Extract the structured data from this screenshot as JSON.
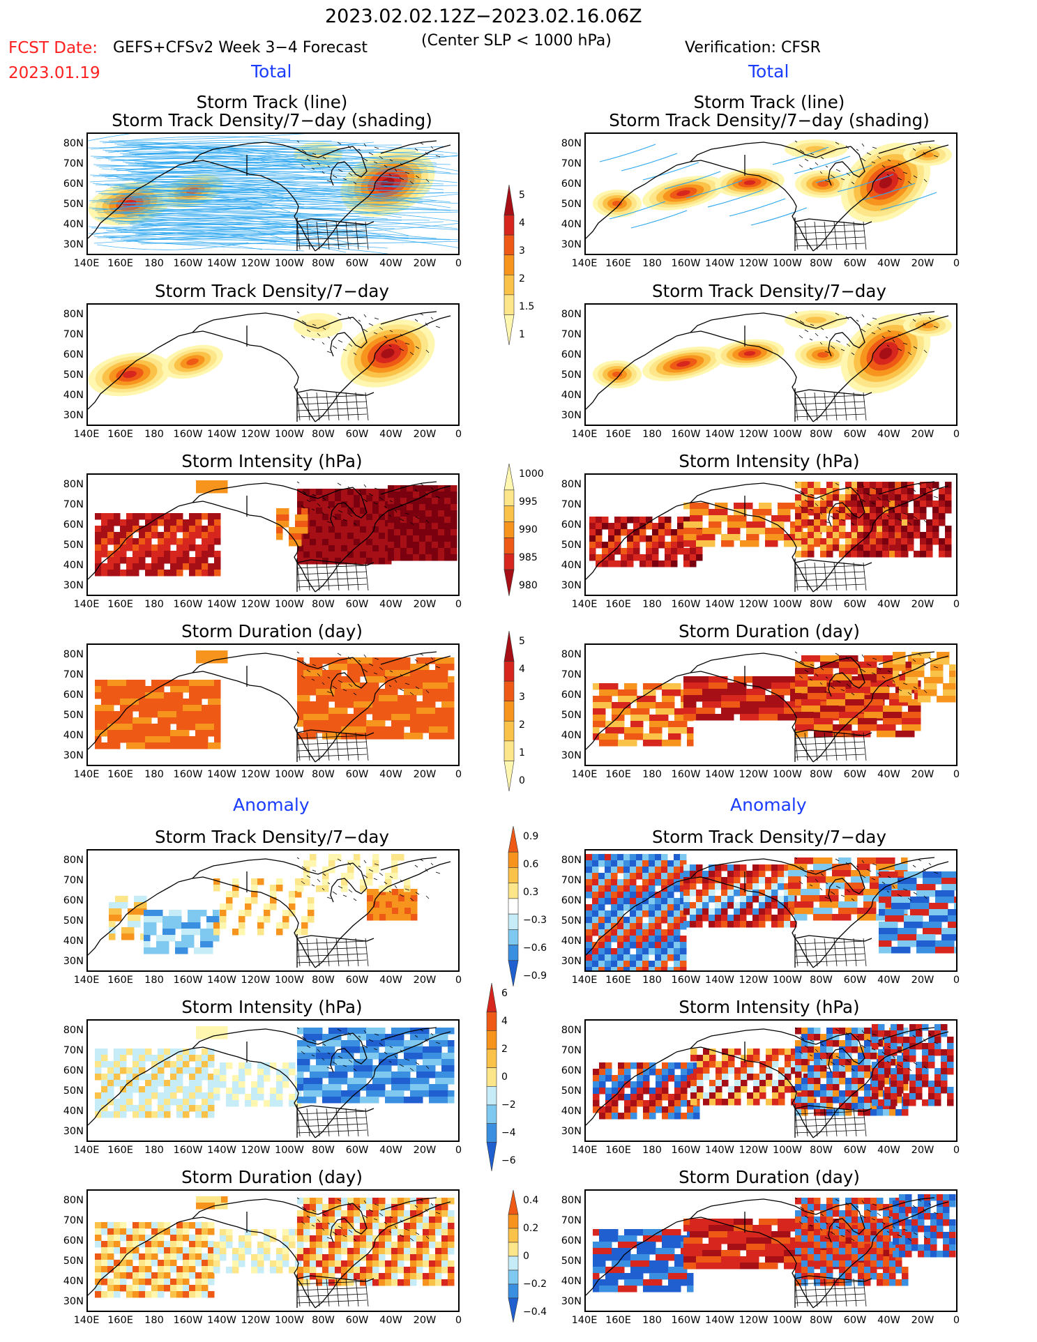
{
  "header": {
    "date_range": "2023.02.02.12Z−2023.02.16.06Z",
    "criterion": "(Center SLP < 1000 hPa)",
    "fcst_date_label": "FCST Date:",
    "forecast_model": "GEFS+CFSv2 Week 3−4 Forecast",
    "fcst_date": "2023.01.19",
    "verification": "Verification: CFSR"
  },
  "sections": {
    "total_left": "Total",
    "total_right": "Total",
    "anomaly_left": "Anomaly",
    "anomaly_right": "Anomaly"
  },
  "panel_titles": {
    "track_line": "Storm Track (line)",
    "track_density_shading": "Storm Track Density/7−day (shading)",
    "track_density": "Storm Track Density/7−day",
    "intensity": "Storm Intensity (hPa)",
    "duration": "Storm Duration (day)"
  },
  "axes": {
    "lat_labels": [
      "80N",
      "70N",
      "60N",
      "50N",
      "40N",
      "30N"
    ],
    "lon_labels": [
      "140E",
      "160E",
      "180",
      "160W",
      "140W",
      "120W",
      "100W",
      "80W",
      "60W",
      "40W",
      "20W",
      "0"
    ]
  },
  "colorbars": {
    "total_density": [
      "5",
      "4",
      "3",
      "2",
      "1.5",
      "1"
    ],
    "total_intensity": [
      "1000",
      "995",
      "990",
      "985",
      "980"
    ],
    "total_duration": [
      "5",
      "4",
      "3",
      "2",
      "1",
      "0"
    ],
    "anom_density": [
      "0.9",
      "0.6",
      "0.3",
      "−0.3",
      "−0.6",
      "−0.9"
    ],
    "anom_intensity": [
      "6",
      "4",
      "2",
      "0",
      "−2",
      "−4",
      "−6"
    ],
    "anom_duration": [
      "0.4",
      "0.2",
      "0",
      "−0.2",
      "−0.4"
    ]
  },
  "colors": {
    "warm": [
      "#fff6b0",
      "#fde68a",
      "#fbc24a",
      "#f7941d",
      "#ee5a16",
      "#d7261e",
      "#a50f15",
      "#7a0010"
    ],
    "cool": [
      "#c6ecf7",
      "#7fc8ef",
      "#3b8fe0",
      "#1f5fd0"
    ],
    "track_line": "#2aa6f0",
    "anomaly_text": "#1a3cff",
    "fcst_text": "#ff2020"
  }
}
